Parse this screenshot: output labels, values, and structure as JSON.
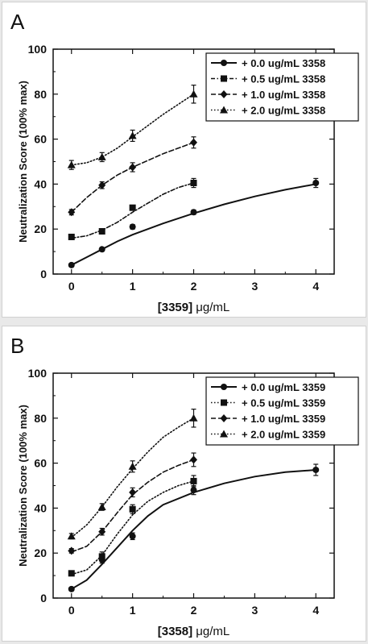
{
  "chart_data": [
    {
      "panel_label": "A",
      "type": "line",
      "xlabel_prefix": "[3359] ",
      "xlabel_unit": "μg/mL",
      "ylabel": "Neutralization Score (100% max)",
      "xlim": [
        -0.3,
        4.3
      ],
      "ylim": [
        0,
        100
      ],
      "xticks": [
        0,
        1,
        2,
        3,
        4
      ],
      "yticks": [
        0,
        20,
        40,
        60,
        80,
        100
      ],
      "legend_position": "top-right",
      "series": [
        {
          "name": "+ 0.0 ug/mL 3358",
          "marker": "circle",
          "dash": "solid",
          "x": [
            0,
            0.5,
            1,
            2,
            4
          ],
          "values": [
            4,
            11,
            21,
            27.5,
            40.5
          ],
          "errors": [
            0.8,
            0.8,
            1,
            1,
            2
          ],
          "fit": [
            [
              0,
              4
            ],
            [
              0.25,
              7.5
            ],
            [
              0.5,
              11
            ],
            [
              0.75,
              14.5
            ],
            [
              1,
              17.5
            ],
            [
              1.5,
              22.5
            ],
            [
              2,
              27
            ],
            [
              2.5,
              31
            ],
            [
              3,
              34.5
            ],
            [
              3.5,
              37.5
            ],
            [
              4,
              40
            ]
          ]
        },
        {
          "name": "+ 0.5 ug/mL 3358",
          "marker": "square",
          "dash": "dashdot",
          "x": [
            0,
            0.5,
            1,
            2
          ],
          "values": [
            16.5,
            19,
            29.5,
            40.5
          ],
          "errors": [
            1,
            1,
            1,
            2
          ],
          "fit": [
            [
              0,
              16
            ],
            [
              0.25,
              17
            ],
            [
              0.5,
              19.5
            ],
            [
              0.75,
              23
            ],
            [
              1,
              27.5
            ],
            [
              1.25,
              31.5
            ],
            [
              1.5,
              35.5
            ],
            [
              1.75,
              38.5
            ],
            [
              2,
              40.5
            ]
          ]
        },
        {
          "name": "+ 1.0 ug/mL 3358",
          "marker": "diamond",
          "dash": "dashed",
          "x": [
            0,
            0.5,
            1,
            2
          ],
          "values": [
            27.5,
            39.5,
            47.5,
            58.5
          ],
          "errors": [
            1.2,
            1.5,
            2,
            2.5
          ],
          "fit": [
            [
              0,
              27.5
            ],
            [
              0.25,
              34
            ],
            [
              0.5,
              39.5
            ],
            [
              0.75,
              44
            ],
            [
              1,
              47.5
            ],
            [
              1.5,
              53.5
            ],
            [
              2,
              58.5
            ]
          ]
        },
        {
          "name": "+ 2.0 ug/mL 3358",
          "marker": "triangle",
          "dash": "dotted",
          "x": [
            0,
            0.5,
            1,
            2
          ],
          "values": [
            48.5,
            52,
            61.5,
            80
          ],
          "errors": [
            2,
            2,
            2.5,
            4
          ],
          "fit": [
            [
              0,
              48.5
            ],
            [
              0.25,
              49.5
            ],
            [
              0.5,
              52
            ],
            [
              0.75,
              56
            ],
            [
              1,
              61
            ],
            [
              1.25,
              66
            ],
            [
              1.5,
              71
            ],
            [
              1.75,
              75.5
            ],
            [
              2,
              80
            ]
          ]
        }
      ]
    },
    {
      "panel_label": "B",
      "type": "line",
      "xlabel_prefix": "[3358] ",
      "xlabel_unit": "μg/mL",
      "ylabel": "Neutralization Score (100% max)",
      "xlim": [
        -0.3,
        4.3
      ],
      "ylim": [
        0,
        100
      ],
      "xticks": [
        0,
        1,
        2,
        3,
        4
      ],
      "yticks": [
        0,
        20,
        40,
        60,
        80,
        100
      ],
      "legend_position": "top-right",
      "series": [
        {
          "name": "+ 0.0 ug/mL 3359",
          "marker": "circle",
          "dash": "solid",
          "x": [
            0,
            0.5,
            1,
            2,
            4
          ],
          "values": [
            4,
            17,
            27.5,
            48,
            57
          ],
          "errors": [
            0.8,
            1.5,
            1.5,
            2,
            2.5
          ],
          "fit": [
            [
              0,
              4
            ],
            [
              0.25,
              8
            ],
            [
              0.5,
              15
            ],
            [
              0.75,
              22.5
            ],
            [
              1,
              30
            ],
            [
              1.25,
              36.5
            ],
            [
              1.5,
              41.5
            ],
            [
              2,
              47
            ],
            [
              2.5,
              51
            ],
            [
              3,
              54
            ],
            [
              3.5,
              56
            ],
            [
              4,
              57
            ]
          ]
        },
        {
          "name": "+ 0.5 ug/mL 3359",
          "marker": "square",
          "dash": "dotted",
          "x": [
            0,
            0.5,
            1,
            2
          ],
          "values": [
            11,
            18.5,
            39.5,
            52
          ],
          "errors": [
            1,
            2,
            2,
            2.5
          ],
          "fit": [
            [
              0,
              10.5
            ],
            [
              0.25,
              12.5
            ],
            [
              0.5,
              19
            ],
            [
              0.75,
              28.5
            ],
            [
              1,
              37
            ],
            [
              1.25,
              43
            ],
            [
              1.5,
              47
            ],
            [
              1.75,
              50
            ],
            [
              2,
              52
            ]
          ]
        },
        {
          "name": "+ 1.0 ug/mL 3359",
          "marker": "diamond",
          "dash": "dashed",
          "x": [
            0,
            0.5,
            1,
            2
          ],
          "values": [
            21,
            29.5,
            47,
            61.5
          ],
          "errors": [
            1,
            1.5,
            2,
            3
          ],
          "fit": [
            [
              0,
              20.5
            ],
            [
              0.25,
              23
            ],
            [
              0.5,
              29.5
            ],
            [
              0.75,
              38
            ],
            [
              1,
              46
            ],
            [
              1.25,
              51.5
            ],
            [
              1.5,
              56
            ],
            [
              1.75,
              59
            ],
            [
              2,
              61.5
            ]
          ]
        },
        {
          "name": "+ 2.0 ug/mL 3359",
          "marker": "triangle",
          "dash": "dotted",
          "x": [
            0,
            0.5,
            1,
            2
          ],
          "values": [
            27.5,
            40.5,
            58.5,
            80
          ],
          "errors": [
            1.2,
            1.5,
            2.5,
            4
          ],
          "fit": [
            [
              0,
              27
            ],
            [
              0.25,
              32.5
            ],
            [
              0.5,
              40.5
            ],
            [
              0.75,
              49.5
            ],
            [
              1,
              57.5
            ],
            [
              1.25,
              65
            ],
            [
              1.5,
              71.5
            ],
            [
              1.75,
              76
            ],
            [
              2,
              80
            ]
          ]
        }
      ]
    }
  ]
}
